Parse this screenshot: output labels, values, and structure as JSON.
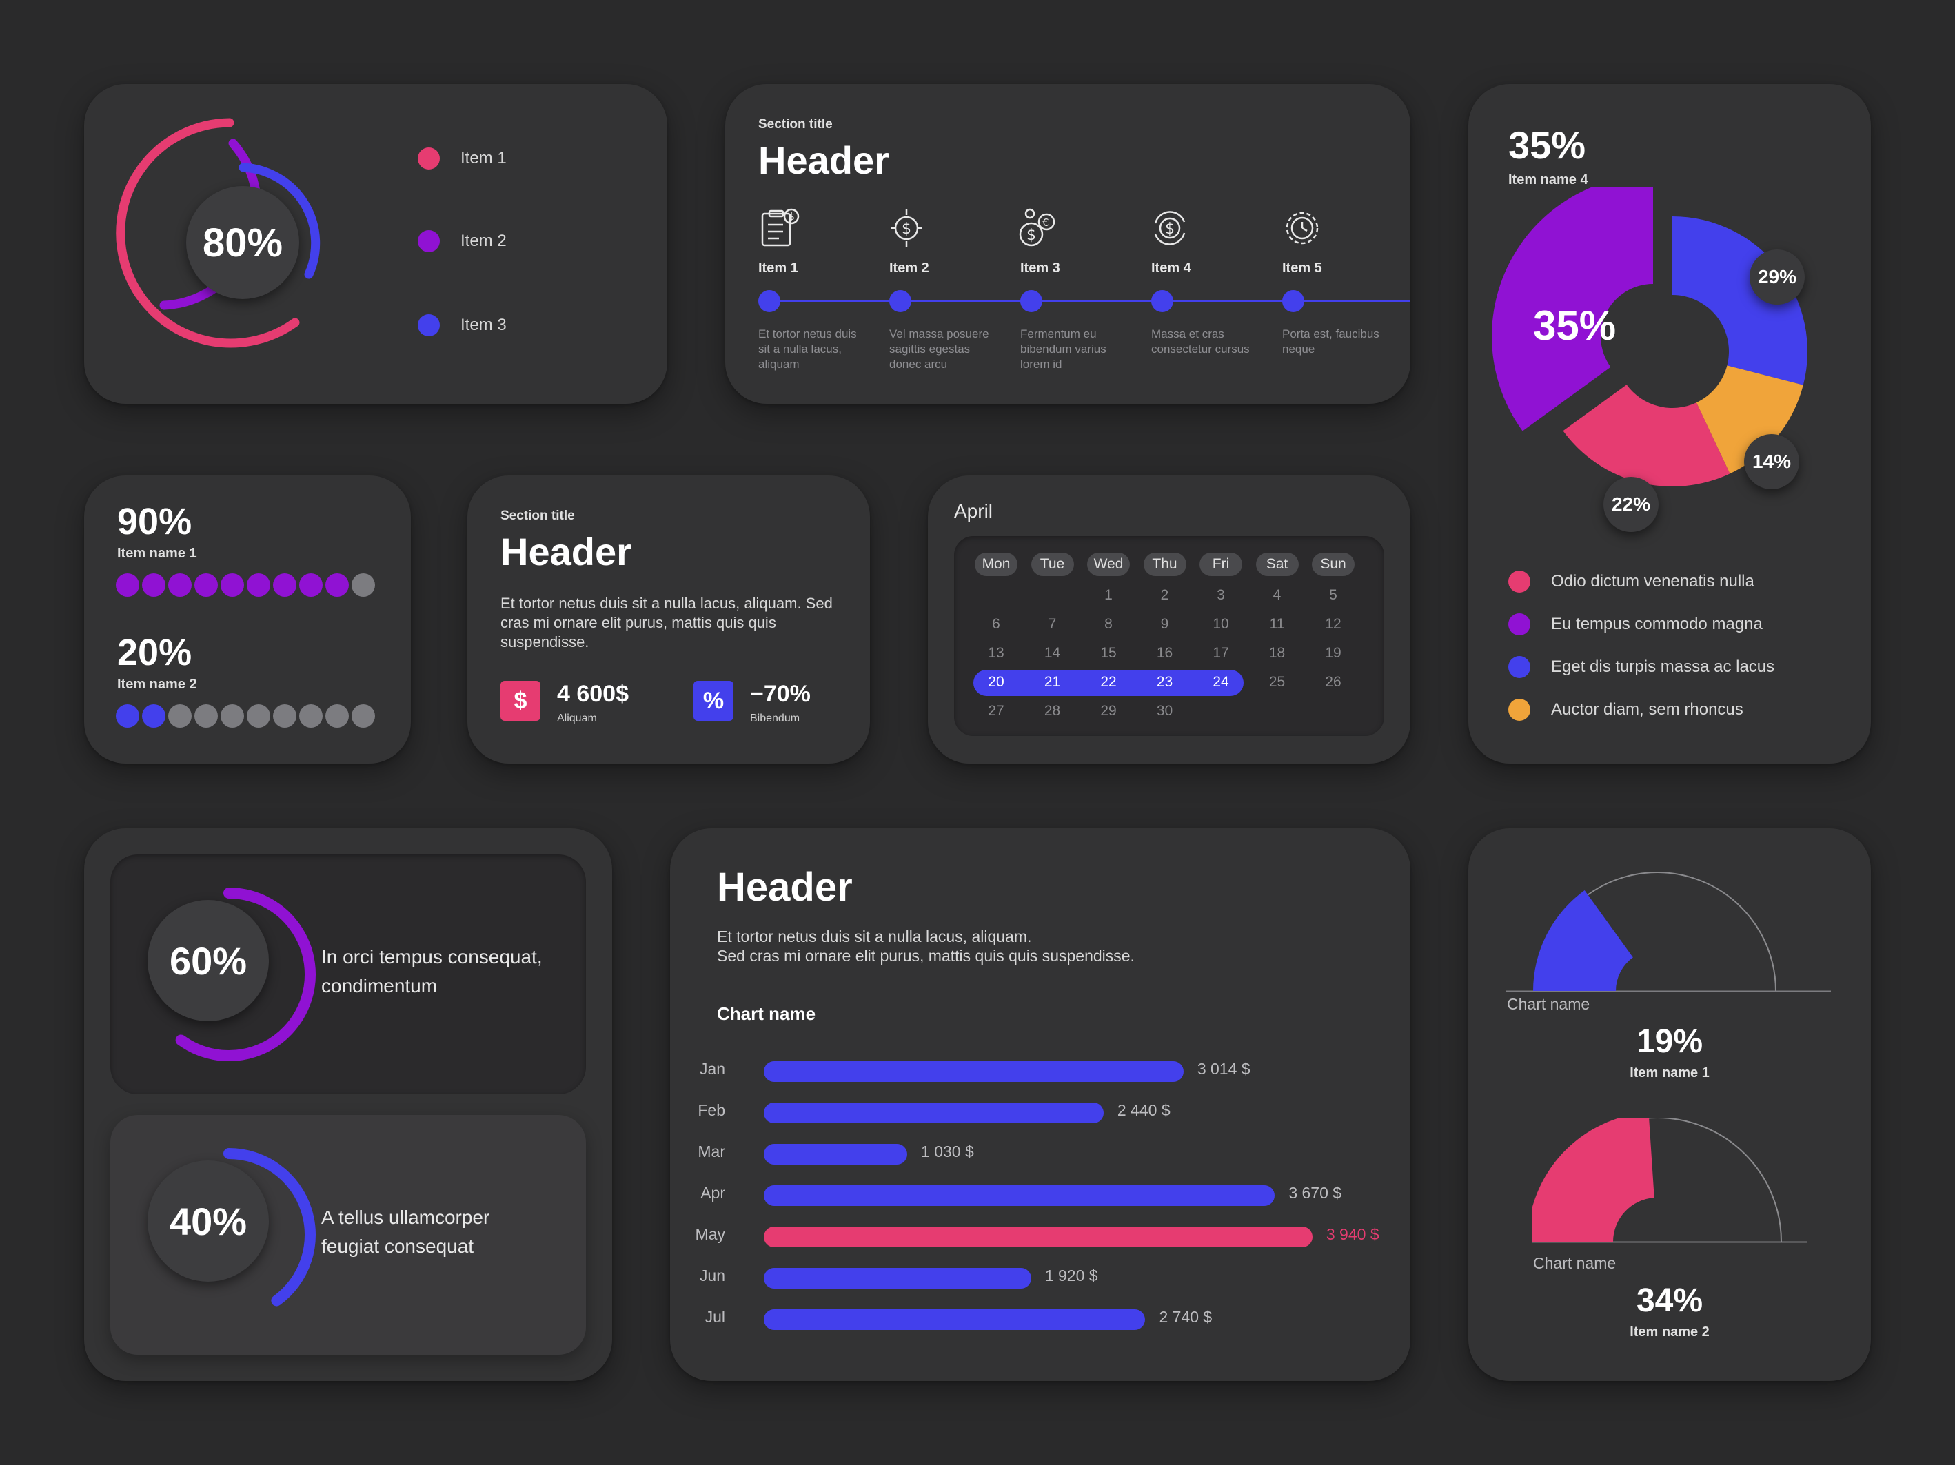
{
  "colors": {
    "pink": "#e63c71",
    "purple": "#9012d3",
    "blue": "#4340ec",
    "orange": "#f0a43a",
    "grey": "#7c7c80",
    "card": "#333334",
    "background": "#2a2a2b"
  },
  "ring_card": {
    "center_label": "80%",
    "legend": [
      {
        "label": "Item 1",
        "color": "#e63c71"
      },
      {
        "label": "Item 2",
        "color": "#9012d3"
      },
      {
        "label": "Item 3",
        "color": "#4340ec"
      }
    ]
  },
  "timeline_card": {
    "section_title": "Section title",
    "header": "Header",
    "items": [
      {
        "label": "Item 1",
        "icon": "clipboard-dollar-icon",
        "desc": "Et tortor netus duis sit a nulla lacus, aliquam"
      },
      {
        "label": "Item 2",
        "icon": "dollar-exchange-icon",
        "desc": "Vel massa posuere sagittis egestas donec arcu"
      },
      {
        "label": "Item 3",
        "icon": "coins-currency-icon",
        "desc": "Fermentum eu bibendum varius lorem id"
      },
      {
        "label": "Item 4",
        "icon": "dollar-refresh-icon",
        "desc": "Massa et cras consectetur cursus"
      },
      {
        "label": "Item 5",
        "icon": "gear-clock-icon",
        "desc": "Porta est, faucibus neque"
      }
    ]
  },
  "progress_card": {
    "rows": [
      {
        "value": "90%",
        "label": "Item name 1",
        "filled": 9,
        "total": 10,
        "color": "#9012d3"
      },
      {
        "value": "20%",
        "label": "Item name 2",
        "filled": 2,
        "total": 10,
        "color": "#4340ec"
      }
    ]
  },
  "text_card": {
    "section_title": "Section title",
    "header": "Header",
    "body": "Et tortor netus duis sit a nulla lacus, aliquam. Sed cras mi ornare elit purus, mattis quis quis suspendisse.",
    "stats": [
      {
        "icon": "dollar-icon",
        "glyph": "$",
        "value": "4 600$",
        "label": "Aliquam",
        "color": "#e63c71"
      },
      {
        "icon": "percent-icon",
        "glyph": "%",
        "value": "−70%",
        "label": "Bibendum",
        "color": "#4340ec"
      }
    ]
  },
  "calendar": {
    "month": "April",
    "weekdays": [
      "Mon",
      "Tue",
      "Wed",
      "Thu",
      "Fri",
      "Sat",
      "Sun"
    ],
    "weeks": [
      [
        "",
        "",
        "1",
        "2",
        "3",
        "4",
        "5"
      ],
      [
        "6",
        "7",
        "8",
        "9",
        "10",
        "11",
        "12"
      ],
      [
        "13",
        "14",
        "15",
        "16",
        "17",
        "18",
        "19"
      ],
      [
        "20",
        "21",
        "22",
        "23",
        "24",
        "25",
        "26"
      ],
      [
        "27",
        "28",
        "29",
        "30",
        "",
        "",
        ""
      ]
    ],
    "selected_range": [
      "20",
      "24"
    ]
  },
  "donut_card": {
    "top_value": "35%",
    "top_label": "Item name 4",
    "chart_data": {
      "type": "pie",
      "slices": [
        {
          "label": "Odio dictum venenatis nulla",
          "value": 22,
          "display": "22%",
          "color": "#e63c71"
        },
        {
          "label": "Eu tempus commodo magna",
          "value": 35,
          "display": "35%",
          "color": "#9012d3"
        },
        {
          "label": "Eget dis turpis massa ac lacus",
          "value": 29,
          "display": "29%",
          "color": "#4340ec"
        },
        {
          "label": "Auctor diam, sem rhoncus",
          "value": 14,
          "display": "14%",
          "color": "#f0a43a"
        }
      ]
    }
  },
  "radial_cards": [
    {
      "value": "60%",
      "text": "In orci tempus consequat, condimentum",
      "fraction": 0.6,
      "color": "#9012d3"
    },
    {
      "value": "40%",
      "text": "A tellus ullamcorper feugiat consequat",
      "fraction": 0.4,
      "color": "#4340ec"
    }
  ],
  "bar_card": {
    "header": "Header",
    "body_line1": "Et tortor netus duis sit a nulla lacus, aliquam.",
    "body_line2": "Sed cras mi ornare elit purus, mattis quis quis suspendisse.",
    "chart_data": {
      "type": "bar",
      "orientation": "horizontal",
      "title": "Chart name",
      "categories": [
        "Jan",
        "Feb",
        "Mar",
        "Apr",
        "May",
        "Jun",
        "Jul"
      ],
      "values": [
        3014,
        2440,
        1030,
        3670,
        3940,
        1920,
        2740
      ],
      "value_labels": [
        "3 014 $",
        "2 440 $",
        "1 030 $",
        "3 670 $",
        "3 940 $",
        "1 920 $",
        "2 740 $"
      ],
      "highlight_index": 4,
      "highlight_color": "#e63c71",
      "bar_color": "#4340ec"
    }
  },
  "gauge_card": {
    "gauges": [
      {
        "chart_name": "Chart name",
        "value": "19%",
        "label": "Item name 1",
        "fraction": 0.19,
        "color": "#4340ec"
      },
      {
        "chart_name": "Chart name",
        "value": "34%",
        "label": "Item name 2",
        "fraction": 0.34,
        "color": "#e63c71"
      }
    ]
  }
}
